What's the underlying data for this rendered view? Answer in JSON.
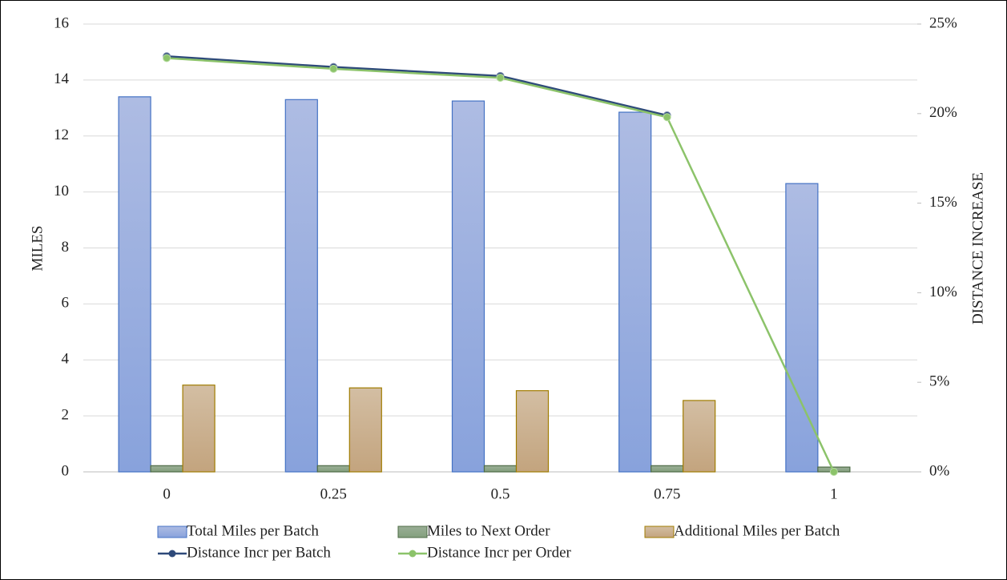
{
  "chart_data": {
    "type": "bar",
    "categories": [
      "0",
      "0.25",
      "0.5",
      "0.75",
      "1"
    ],
    "y_label": "MILES",
    "y2_label": "DISTANCE INCREASE",
    "ylim": [
      0,
      16
    ],
    "yticks": [
      0,
      2,
      4,
      6,
      8,
      10,
      12,
      14,
      16
    ],
    "y2lim": [
      0,
      25
    ],
    "y2ticks": [
      {
        "value": 0,
        "label": "0%"
      },
      {
        "value": 5,
        "label": "5%"
      },
      {
        "value": 10,
        "label": "10%"
      },
      {
        "value": 15,
        "label": "15%"
      },
      {
        "value": 20,
        "label": "20%"
      },
      {
        "value": 25,
        "label": "25%"
      }
    ],
    "grid": true,
    "series": [
      {
        "name": "Total Miles per Batch",
        "type": "bar",
        "color": "#98afe0",
        "values": [
          13.4,
          13.3,
          13.25,
          12.85,
          10.3
        ]
      },
      {
        "name": "Miles to Next Order",
        "type": "bar",
        "color": "#8fa98a",
        "values": [
          0.22,
          0.22,
          0.22,
          0.22,
          0.17
        ]
      },
      {
        "name": "Additional Miles per Batch",
        "type": "bar",
        "color": "#c9ad8c",
        "values": [
          3.1,
          3.0,
          2.9,
          2.55,
          0
        ]
      },
      {
        "name": "Distance Incr per Batch",
        "type": "line",
        "axis": "y2",
        "color": "#2e4a7a",
        "values": [
          23.2,
          22.6,
          22.1,
          19.9,
          null
        ]
      },
      {
        "name": "Distance Incr per Order",
        "type": "line",
        "axis": "y2",
        "color": "#8cc36a",
        "values": [
          23.1,
          22.5,
          22.0,
          19.8,
          0
        ]
      }
    ]
  }
}
